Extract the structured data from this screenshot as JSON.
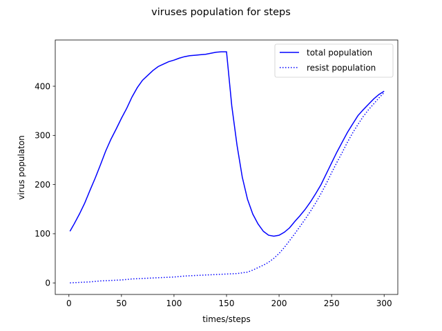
{
  "chart_data": {
    "type": "line",
    "title": "viruses population for steps",
    "xlabel": "times/steps",
    "ylabel": "virus populaton",
    "xlim": [
      -13,
      313
    ],
    "ylim": [
      -23.5,
      494
    ],
    "xticks": [
      0,
      50,
      100,
      150,
      200,
      250,
      300
    ],
    "yticks": [
      0,
      100,
      200,
      300,
      400
    ],
    "grid": false,
    "legend_position": "top-right",
    "series": [
      {
        "name": "total population",
        "color": "#0000ff",
        "style": "solid",
        "x": [
          1,
          5,
          10,
          15,
          20,
          25,
          30,
          35,
          40,
          45,
          50,
          55,
          60,
          65,
          70,
          75,
          80,
          85,
          90,
          95,
          100,
          105,
          110,
          115,
          120,
          125,
          130,
          135,
          140,
          145,
          150,
          155,
          160,
          165,
          170,
          175,
          180,
          185,
          190,
          195,
          200,
          205,
          210,
          215,
          220,
          225,
          230,
          235,
          240,
          245,
          250,
          255,
          260,
          265,
          270,
          275,
          280,
          285,
          290,
          295,
          300
        ],
        "y": [
          105,
          120,
          140,
          162,
          188,
          213,
          240,
          268,
          292,
          313,
          335,
          355,
          378,
          397,
          412,
          422,
          432,
          440,
          445,
          450,
          453,
          457,
          460,
          462,
          463,
          464,
          465,
          467,
          469,
          470,
          470,
          360,
          280,
          215,
          170,
          140,
          120,
          105,
          97,
          95,
          97,
          103,
          112,
          125,
          137,
          150,
          165,
          182,
          200,
          222,
          244,
          266,
          286,
          306,
          323,
          340,
          352,
          363,
          374,
          383,
          390
        ]
      },
      {
        "name": "resist population",
        "color": "#0000ff",
        "style": "dotted",
        "x": [
          1,
          10,
          20,
          30,
          40,
          50,
          60,
          70,
          80,
          90,
          100,
          110,
          120,
          130,
          140,
          150,
          160,
          170,
          175,
          180,
          185,
          190,
          195,
          200,
          205,
          210,
          215,
          220,
          225,
          230,
          235,
          240,
          245,
          250,
          255,
          260,
          265,
          270,
          275,
          280,
          285,
          290,
          295,
          300
        ],
        "y": [
          0,
          1,
          2,
          4,
          5,
          6,
          8,
          9,
          10,
          11,
          12,
          14,
          15,
          16,
          17,
          18,
          19,
          22,
          26,
          31,
          36,
          42,
          50,
          60,
          72,
          86,
          100,
          115,
          130,
          146,
          163,
          182,
          202,
          224,
          245,
          265,
          286,
          305,
          322,
          338,
          352,
          364,
          376,
          387
        ]
      }
    ]
  }
}
